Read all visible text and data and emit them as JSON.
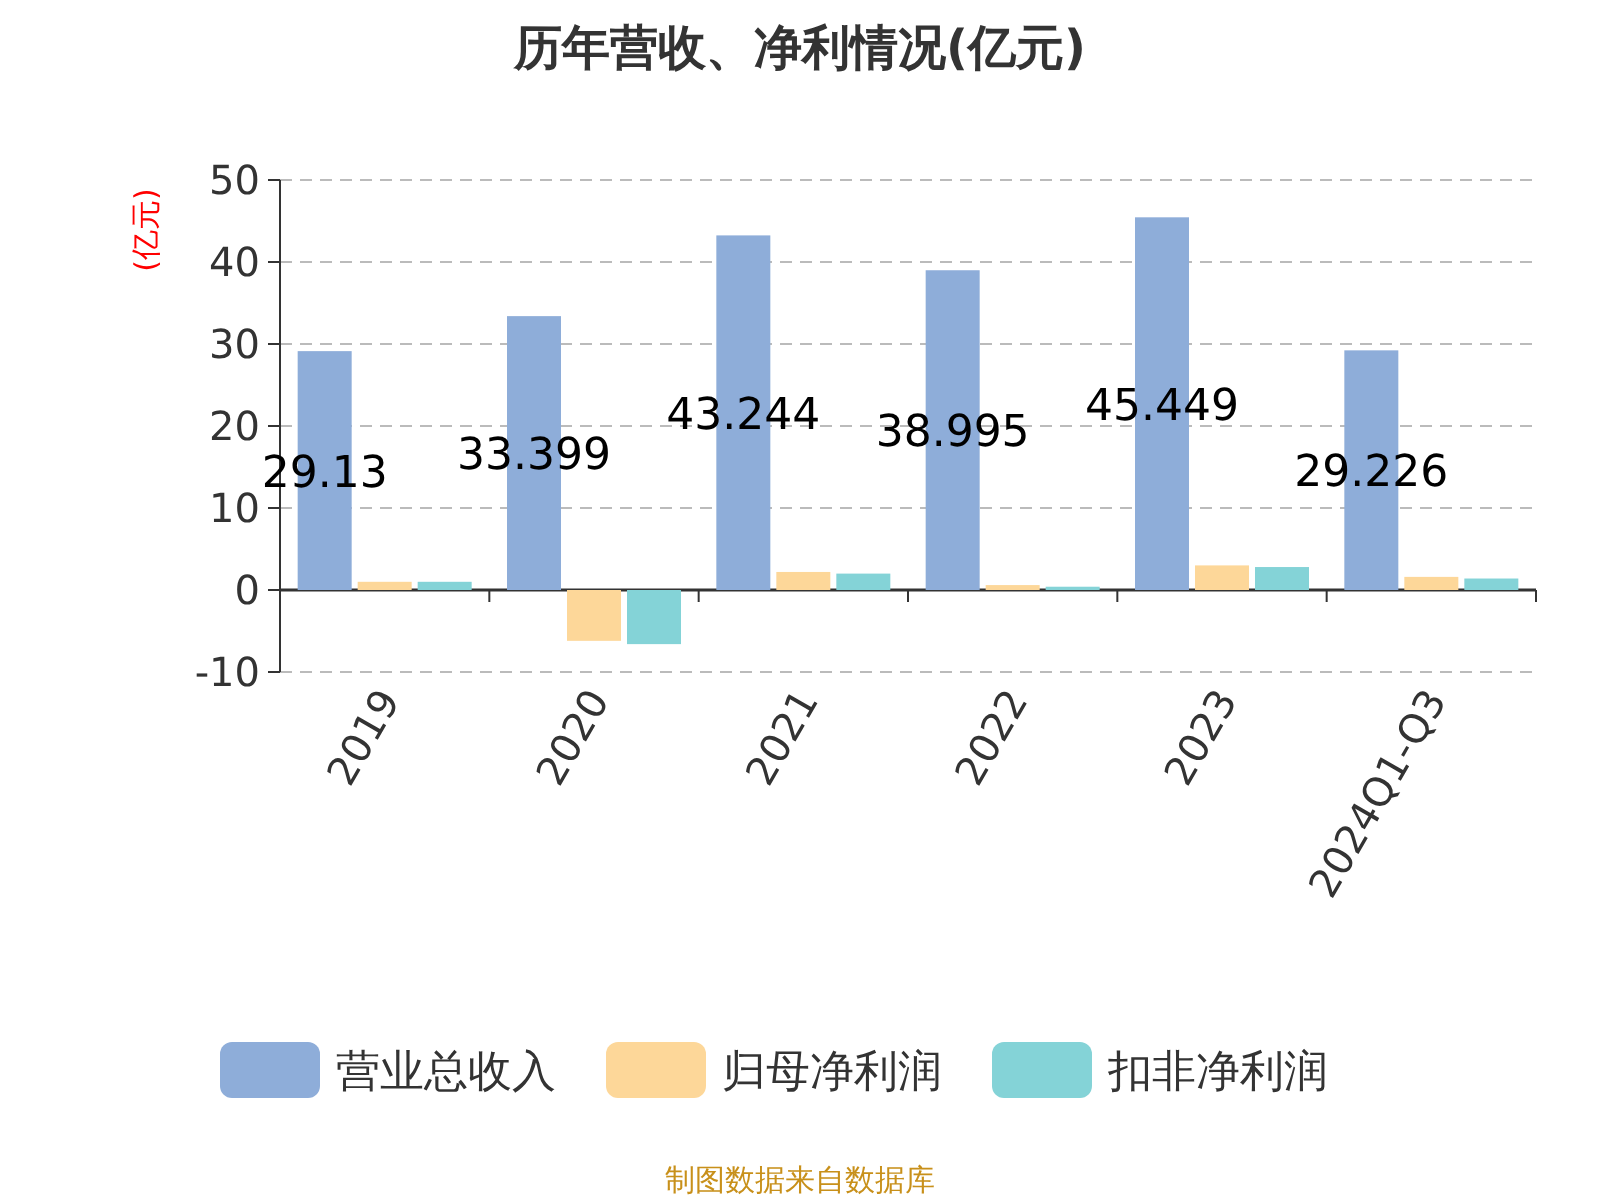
{
  "chart_data": {
    "type": "bar",
    "title": "历年营收、净利情况(亿元)",
    "ylabel": "(亿元)",
    "categories": [
      "2019",
      "2020",
      "2021",
      "2022",
      "2023",
      "2024Q1-Q3"
    ],
    "series": [
      {
        "name": "营业总收入",
        "color": "#8eadd9",
        "values": [
          29.13,
          33.399,
          43.244,
          38.995,
          45.449,
          29.226
        ],
        "value_labels": [
          "29.13",
          "33.399",
          "43.244",
          "38.995",
          "45.449",
          "29.226"
        ]
      },
      {
        "name": "归母净利润",
        "color": "#fdd799",
        "values": [
          1.0,
          -6.2,
          2.2,
          0.6,
          3.0,
          1.6
        ]
      },
      {
        "name": "扣非净利润",
        "color": "#84d3d7",
        "values": [
          1.0,
          -6.6,
          2.0,
          0.4,
          2.8,
          1.4
        ]
      }
    ],
    "ylim": [
      -10,
      50
    ],
    "yticks": [
      -10,
      0,
      10,
      20,
      30,
      40,
      50
    ],
    "grid": "y",
    "legend": "bottom",
    "annotations": [
      "制图数据来自数据库"
    ]
  }
}
